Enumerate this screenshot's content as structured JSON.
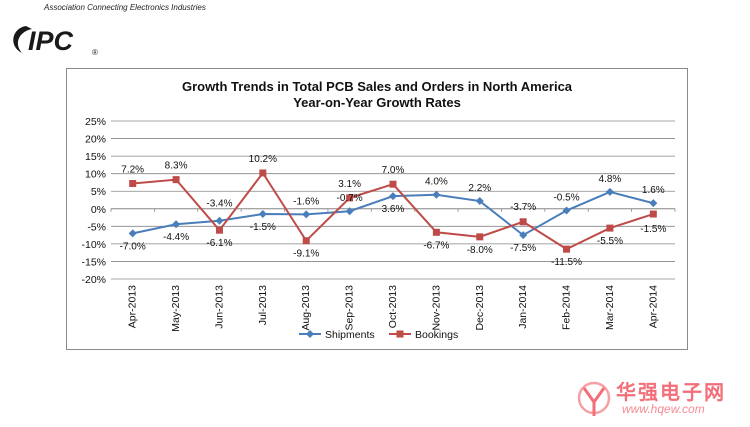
{
  "header": {
    "tagline": "Association Connecting Electronics Industries",
    "logo_text": "IPC",
    "logo_registered": "®"
  },
  "watermark": {
    "cn_text": "华强电子网",
    "url": "www.hqew.com"
  },
  "colors": {
    "shipments": "#4a7ebb",
    "bookings": "#be4b48",
    "grid": "#868686",
    "logo": "#1a1a1a"
  },
  "chart_data": {
    "type": "line",
    "title": "Growth Trends in Total PCB Sales and Orders in North America",
    "subtitle": "Year-on-Year Growth Rates",
    "categories": [
      "Apr-2013",
      "May-2013",
      "Jun-2013",
      "Jul-2013",
      "Aug-2013",
      "Sep-2013",
      "Oct-2013",
      "Nov-2013",
      "Dec-2013",
      "Jan-2014",
      "Feb-2014",
      "Mar-2014",
      "Apr-2014"
    ],
    "series": [
      {
        "name": "Shipments",
        "marker": "diamond",
        "values": [
          -7.0,
          -4.4,
          -3.4,
          -1.5,
          -1.6,
          -0.7,
          3.6,
          4.0,
          2.2,
          -7.5,
          -0.5,
          4.8,
          1.6
        ],
        "labels": [
          "-7.0%",
          "-4.4%",
          "-3.4%",
          "-1.5%",
          "-1.6%",
          "-0.7%",
          "3.6%",
          "4.0%",
          "2.2%",
          "-7.5%",
          "-0.5%",
          "4.8%",
          "1.6%"
        ]
      },
      {
        "name": "Bookings",
        "marker": "square",
        "values": [
          7.2,
          8.3,
          -6.1,
          10.2,
          -9.1,
          3.1,
          7.0,
          -6.7,
          -8.0,
          -3.7,
          -11.5,
          -5.5,
          -1.5
        ],
        "labels": [
          "7.2%",
          "8.3%",
          "-6.1%",
          "10.2%",
          "-9.1%",
          "3.1%",
          "7.0%",
          "-6.7%",
          "-8.0%",
          "-3.7%",
          "-11.5%",
          "-5.5%",
          "-1.5%"
        ]
      }
    ],
    "ylim": [
      -20,
      25
    ],
    "yticks": [
      25,
      20,
      15,
      10,
      5,
      0,
      -5,
      -10,
      -15,
      -20
    ],
    "ytick_labels": [
      "25%",
      "20%",
      "15%",
      "10%",
      "5%",
      "0%",
      "-5%",
      "-10%",
      "-15%",
      "-20%"
    ],
    "xlabel": "",
    "ylabel": "",
    "grid": true,
    "legend": "bottom"
  }
}
